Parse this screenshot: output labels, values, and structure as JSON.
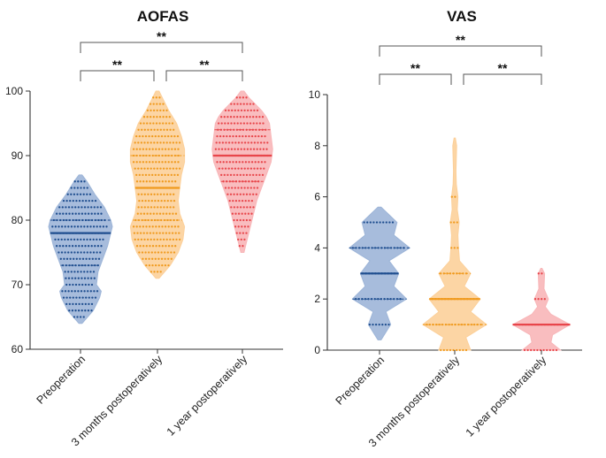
{
  "chart_data": [
    {
      "type": "violin",
      "title": "AOFAS",
      "ylim": [
        60,
        100
      ],
      "yticks": [
        60,
        70,
        80,
        90,
        100
      ],
      "categories": [
        "Preoperation",
        "3 months postoperatively",
        "1 year postoperatively"
      ],
      "colors": {
        "fill": [
          "#9db5d8",
          "#fcd09a",
          "#f8b6b8"
        ],
        "point": [
          "#1f4e8f",
          "#f09a1e",
          "#e8464b"
        ]
      },
      "series": [
        {
          "name": "Preoperation",
          "range": [
            64,
            87
          ],
          "median": 78,
          "quartiles": [
            73,
            80
          ],
          "density": [
            [
              64,
              0.05
            ],
            [
              66,
              0.4
            ],
            [
              68,
              0.6
            ],
            [
              69,
              0.65
            ],
            [
              70,
              0.5
            ],
            [
              72,
              0.55
            ],
            [
              74,
              0.7
            ],
            [
              76,
              0.85
            ],
            [
              78,
              0.95
            ],
            [
              79,
              1.0
            ],
            [
              80,
              0.95
            ],
            [
              82,
              0.75
            ],
            [
              84,
              0.45
            ],
            [
              86,
              0.2
            ],
            [
              87,
              0.05
            ]
          ]
        },
        {
          "name": "3 months postoperatively",
          "range": [
            71,
            100
          ],
          "median": 85,
          "quartiles": [
            80,
            90
          ],
          "density": [
            [
              71,
              0.05
            ],
            [
              73,
              0.4
            ],
            [
              75,
              0.65
            ],
            [
              77,
              0.8
            ],
            [
              79,
              0.85
            ],
            [
              81,
              0.7
            ],
            [
              83,
              0.65
            ],
            [
              85,
              0.7
            ],
            [
              87,
              0.75
            ],
            [
              89,
              0.85
            ],
            [
              91,
              0.85
            ],
            [
              93,
              0.75
            ],
            [
              95,
              0.6
            ],
            [
              97,
              0.35
            ],
            [
              99,
              0.15
            ],
            [
              100,
              0.05
            ]
          ]
        },
        {
          "name": "1 year postoperatively",
          "range": [
            75,
            100
          ],
          "median": 90,
          "quartiles": [
            86,
            94
          ],
          "density": [
            [
              75,
              0.05
            ],
            [
              77,
              0.15
            ],
            [
              79,
              0.25
            ],
            [
              81,
              0.35
            ],
            [
              83,
              0.45
            ],
            [
              85,
              0.6
            ],
            [
              87,
              0.75
            ],
            [
              89,
              0.9
            ],
            [
              91,
              0.95
            ],
            [
              93,
              0.9
            ],
            [
              95,
              0.85
            ],
            [
              96,
              0.75
            ],
            [
              97,
              0.6
            ],
            [
              98,
              0.4
            ],
            [
              99,
              0.2
            ],
            [
              100,
              0.05
            ]
          ]
        }
      ],
      "significance": [
        {
          "from": 0,
          "to": 1,
          "label": "**"
        },
        {
          "from": 1,
          "to": 2,
          "label": "**"
        },
        {
          "from": 0,
          "to": 2,
          "label": "**"
        }
      ]
    },
    {
      "type": "violin",
      "title": "VAS",
      "ylim": [
        0,
        10
      ],
      "yticks": [
        0,
        2,
        4,
        6,
        8,
        10
      ],
      "categories": [
        "Preoperation",
        "3 months postoperatively",
        "1 year postoperatively"
      ],
      "colors": {
        "fill": [
          "#9db5d8",
          "#fcd09a",
          "#f8b6b8"
        ],
        "point": [
          "#1f4e8f",
          "#f09a1e",
          "#e8464b"
        ]
      },
      "series": [
        {
          "name": "Preoperation",
          "range": [
            0.4,
            5.6
          ],
          "median": 3,
          "quartiles": [
            2,
            4
          ],
          "density": [
            [
              0.4,
              0.05
            ],
            [
              1,
              0.35
            ],
            [
              1.5,
              0.2
            ],
            [
              2,
              0.85
            ],
            [
              2.5,
              0.45
            ],
            [
              3,
              0.6
            ],
            [
              3.5,
              0.3
            ],
            [
              4,
              0.95
            ],
            [
              4.5,
              0.45
            ],
            [
              5,
              0.55
            ],
            [
              5.6,
              0.05
            ]
          ]
        },
        {
          "name": "3 months postoperatively",
          "range": [
            0,
            8.3
          ],
          "median": 2,
          "quartiles": [
            1,
            3
          ],
          "density": [
            [
              0,
              0.5
            ],
            [
              0.5,
              0.35
            ],
            [
              1,
              1.0
            ],
            [
              1.5,
              0.5
            ],
            [
              2,
              0.8
            ],
            [
              2.5,
              0.3
            ],
            [
              3,
              0.5
            ],
            [
              3.5,
              0.15
            ],
            [
              4,
              0.12
            ],
            [
              4.5,
              0.1
            ],
            [
              5,
              0.14
            ],
            [
              5.5,
              0.08
            ],
            [
              6,
              0.1
            ],
            [
              6.5,
              0.05
            ],
            [
              7,
              0.04
            ],
            [
              7.5,
              0.05
            ],
            [
              8,
              0.06
            ],
            [
              8.3,
              0.02
            ]
          ]
        },
        {
          "name": "1 year postoperatively",
          "range": [
            0,
            3.2
          ],
          "median": 1,
          "quartiles": [
            1,
            1
          ],
          "density": [
            [
              0,
              0.6
            ],
            [
              0.3,
              0.3
            ],
            [
              0.6,
              0.35
            ],
            [
              1,
              0.9
            ],
            [
              1.4,
              0.3
            ],
            [
              1.7,
              0.12
            ],
            [
              2,
              0.22
            ],
            [
              2.4,
              0.08
            ],
            [
              3,
              0.1
            ],
            [
              3.2,
              0.02
            ]
          ]
        }
      ],
      "significance": [
        {
          "from": 0,
          "to": 1,
          "label": "**"
        },
        {
          "from": 1,
          "to": 2,
          "label": "**"
        },
        {
          "from": 0,
          "to": 2,
          "label": "**"
        }
      ]
    }
  ]
}
